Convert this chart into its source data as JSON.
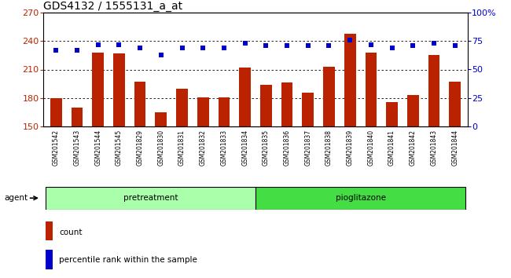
{
  "title": "GDS4132 / 1555131_a_at",
  "categories": [
    "GSM201542",
    "GSM201543",
    "GSM201544",
    "GSM201545",
    "GSM201829",
    "GSM201830",
    "GSM201831",
    "GSM201832",
    "GSM201833",
    "GSM201834",
    "GSM201835",
    "GSM201836",
    "GSM201837",
    "GSM201838",
    "GSM201839",
    "GSM201840",
    "GSM201841",
    "GSM201842",
    "GSM201843",
    "GSM201844"
  ],
  "bar_values": [
    180,
    170,
    228,
    227,
    197,
    165,
    190,
    181,
    181,
    212,
    194,
    196,
    186,
    213,
    248,
    228,
    176,
    183,
    225,
    197
  ],
  "scatter_values": [
    67,
    67,
    72,
    72,
    69,
    63,
    69,
    69,
    69,
    73,
    71,
    71,
    71,
    71,
    76,
    72,
    69,
    71,
    73,
    71
  ],
  "bar_color": "#bb2200",
  "scatter_color": "#0000cc",
  "ylim_left": [
    150,
    270
  ],
  "ylim_right": [
    0,
    100
  ],
  "yticks_left": [
    150,
    180,
    210,
    240,
    270
  ],
  "yticks_right": [
    0,
    25,
    50,
    75,
    100
  ],
  "pretreatment_count": 10,
  "pioglitazone_count": 10,
  "group_color_pre": "#aaffaa",
  "group_color_pio": "#44dd44",
  "agent_label": "agent",
  "pretreatment_label": "pretreatment",
  "pioglitazone_label": "pioglitazone",
  "legend_count_label": "count",
  "legend_pct_label": "percentile rank within the sample",
  "background_color": "#ffffff",
  "plot_bg_color": "#ffffff",
  "tick_area_color": "#cccccc",
  "title_fontsize": 10,
  "tick_fontsize": 8,
  "label_fontsize": 8
}
